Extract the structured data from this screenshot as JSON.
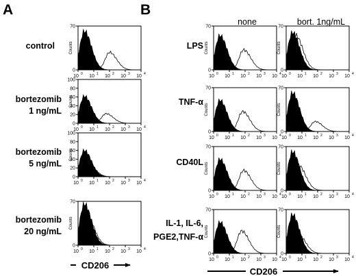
{
  "figure": {
    "panel_a_letter": "A",
    "panel_b_letter": "B",
    "col_headers": [
      "none",
      "bort. 1ng/mL"
    ],
    "panel_a_rows": [
      [
        "control"
      ],
      [
        "bortezomib",
        "1 ng/mL"
      ],
      [
        "bortezomib",
        "5 ng/mL"
      ],
      [
        "bortezomib",
        "20 ng/mL"
      ]
    ],
    "panel_b_rows": [
      [
        "LPS"
      ],
      [
        "TNF-α"
      ],
      [
        "CD40L"
      ],
      [
        "IL-1, IL-6,",
        "PGE2,TNF-α"
      ]
    ],
    "panel_a_xlabel": "CD206",
    "panel_b_xlabel": "CD206",
    "y_axis_label": "Counts",
    "x_tick_labels": [
      "10",
      "10",
      "10",
      "10",
      "10"
    ],
    "x_tick_exponents": [
      "0",
      "1",
      "2",
      "3",
      "4"
    ]
  },
  "chart_data": [
    {
      "panel": "A",
      "row": "control",
      "type": "histogram",
      "ylim": [
        0,
        70
      ],
      "yticks": [
        0,
        70
      ],
      "xlim": [
        1,
        10000
      ],
      "x_scale": "log",
      "xlabel": "CD206",
      "ylabel": "Counts",
      "isotype_peak": 2.5,
      "isotype_height": 62,
      "stained_peak": 100,
      "stained_height": 28
    },
    {
      "panel": "A",
      "row": "bortezomib 1 ng/mL",
      "type": "histogram",
      "ylim": [
        0,
        100
      ],
      "yticks": [
        0,
        20,
        40,
        60,
        80,
        100
      ],
      "xlim": [
        1,
        10000
      ],
      "x_scale": "log",
      "xlabel": "CD206",
      "ylabel": "Counts",
      "isotype_peak": 2.5,
      "isotype_height": 62,
      "stained_peak": 60,
      "stained_height": 22
    },
    {
      "panel": "A",
      "row": "bortezomib 5 ng/mL",
      "type": "histogram",
      "ylim": [
        0,
        100
      ],
      "yticks": [
        0,
        20,
        40,
        60,
        80,
        100
      ],
      "xlim": [
        1,
        10000
      ],
      "x_scale": "log",
      "xlabel": "CD206",
      "ylabel": "Counts",
      "isotype_peak": 2.5,
      "isotype_height": 60,
      "stained_peak": 4,
      "stained_height": 32
    },
    {
      "panel": "A",
      "row": "bortezomib 20 ng/mL",
      "type": "histogram",
      "ylim": [
        0,
        70
      ],
      "yticks": [
        0,
        70
      ],
      "xlim": [
        1,
        10000
      ],
      "x_scale": "log",
      "xlabel": "CD206",
      "ylabel": "Counts",
      "isotype_peak": 2.5,
      "isotype_height": 66,
      "stained_peak": 3.5,
      "stained_height": 50
    },
    {
      "panel": "B",
      "row": "LPS",
      "condition": "none",
      "type": "histogram",
      "ylim": [
        0,
        70
      ],
      "yticks": [
        0,
        70
      ],
      "xlim": [
        1,
        10000
      ],
      "x_scale": "log",
      "xlabel": "CD206",
      "ylabel": "Counts",
      "isotype_peak": 2.5,
      "isotype_height": 55,
      "stained_peak": 80,
      "stained_height": 32
    },
    {
      "panel": "B",
      "row": "LPS",
      "condition": "bort. 1ng/mL",
      "type": "histogram",
      "ylim": [
        0,
        70
      ],
      "yticks": [
        0,
        70
      ],
      "xlim": [
        1,
        10000
      ],
      "x_scale": "log",
      "xlabel": "CD206",
      "ylabel": "Counts",
      "isotype_peak": 2.5,
      "isotype_height": 60,
      "stained_peak": 4,
      "stained_height": 55
    },
    {
      "panel": "B",
      "row": "TNF-α",
      "condition": "none",
      "type": "histogram",
      "ylim": [
        0,
        70
      ],
      "yticks": [
        0,
        70
      ],
      "xlim": [
        1,
        10000
      ],
      "x_scale": "log",
      "xlabel": "CD206",
      "ylabel": "Counts",
      "isotype_peak": 2.5,
      "isotype_height": 50,
      "stained_peak": 70,
      "stained_height": 32
    },
    {
      "panel": "B",
      "row": "TNF-α",
      "condition": "bort. 1ng/mL",
      "type": "histogram",
      "ylim": [
        0,
        70
      ],
      "yticks": [
        0,
        70
      ],
      "xlim": [
        1,
        10000
      ],
      "x_scale": "log",
      "xlabel": "CD206",
      "ylabel": "Counts",
      "isotype_peak": 2.5,
      "isotype_height": 62,
      "stained_peak": 70,
      "stained_height": 16
    },
    {
      "panel": "B",
      "row": "CD40L",
      "condition": "none",
      "type": "histogram",
      "ylim": [
        0,
        70
      ],
      "yticks": [
        0,
        70
      ],
      "xlim": [
        1,
        10000
      ],
      "x_scale": "log",
      "xlabel": "CD206",
      "ylabel": "Counts",
      "isotype_peak": 2.5,
      "isotype_height": 50,
      "stained_peak": 80,
      "stained_height": 32
    },
    {
      "panel": "B",
      "row": "CD40L",
      "condition": "bort. 1ng/mL",
      "type": "histogram",
      "ylim": [
        0,
        70
      ],
      "yticks": [
        0,
        70
      ],
      "xlim": [
        1,
        10000
      ],
      "x_scale": "log",
      "xlabel": "CD206",
      "ylabel": "Counts",
      "isotype_peak": 2.5,
      "isotype_height": 62,
      "stained_peak": 6,
      "stained_height": 40
    },
    {
      "panel": "B",
      "row": "IL-1, IL-6, PGE2,TNF-α",
      "condition": "none",
      "type": "histogram",
      "ylim": [
        0,
        70
      ],
      "yticks": [
        0,
        70
      ],
      "xlim": [
        1,
        10000
      ],
      "x_scale": "log",
      "xlabel": "CD206",
      "ylabel": "Counts",
      "isotype_peak": 2.5,
      "isotype_height": 50,
      "stained_peak": 60,
      "stained_height": 36
    },
    {
      "panel": "B",
      "row": "IL-1, IL-6, PGE2,TNF-α",
      "condition": "bort. 1ng/mL",
      "type": "histogram",
      "ylim": [
        0,
        70
      ],
      "yticks": [
        0,
        70
      ],
      "xlim": [
        1,
        10000
      ],
      "x_scale": "log",
      "xlabel": "CD206",
      "ylabel": "Counts",
      "isotype_peak": 2.5,
      "isotype_height": 62,
      "stained_peak": 6,
      "stained_height": 30
    }
  ]
}
